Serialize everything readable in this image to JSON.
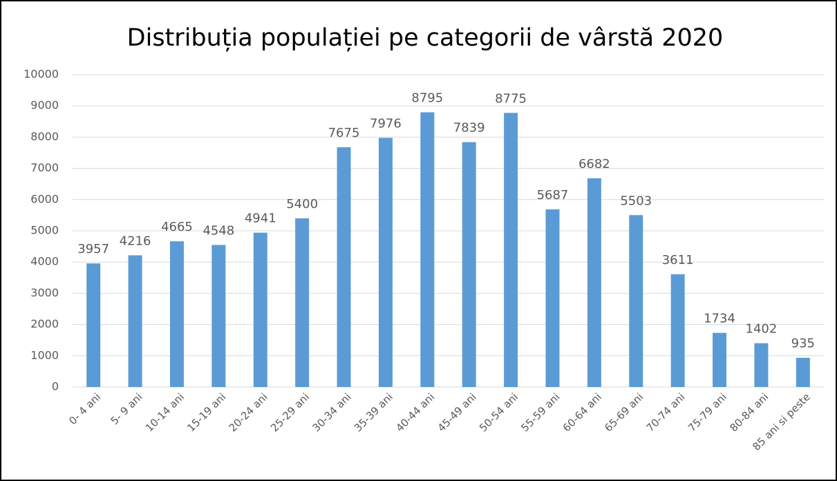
{
  "chart_data": {
    "type": "bar",
    "title": "Distribuția populației pe categorii de vârstă 2020",
    "categories": [
      "0- 4 ani",
      "5- 9 ani",
      "10-14 ani",
      "15-19 ani",
      "20-24 ani",
      "25-29 ani",
      "30-34 ani",
      "35-39 ani",
      "40-44 ani",
      "45-49 ani",
      "50-54 ani",
      "55-59 ani",
      "60-64 ani",
      "65-69 ani",
      "70-74 ani",
      "75-79 ani",
      "80-84 ani",
      "85 ani si peste"
    ],
    "values": [
      3957,
      4216,
      4665,
      4548,
      4941,
      5400,
      7675,
      7976,
      8795,
      7839,
      8775,
      5687,
      6682,
      5503,
      3611,
      1734,
      1402,
      935
    ],
    "color": "#5b9bd5",
    "ylim": [
      0,
      10000
    ],
    "yticks": [
      0,
      1000,
      2000,
      3000,
      4000,
      5000,
      6000,
      7000,
      8000,
      9000,
      10000
    ],
    "grid": true
  }
}
